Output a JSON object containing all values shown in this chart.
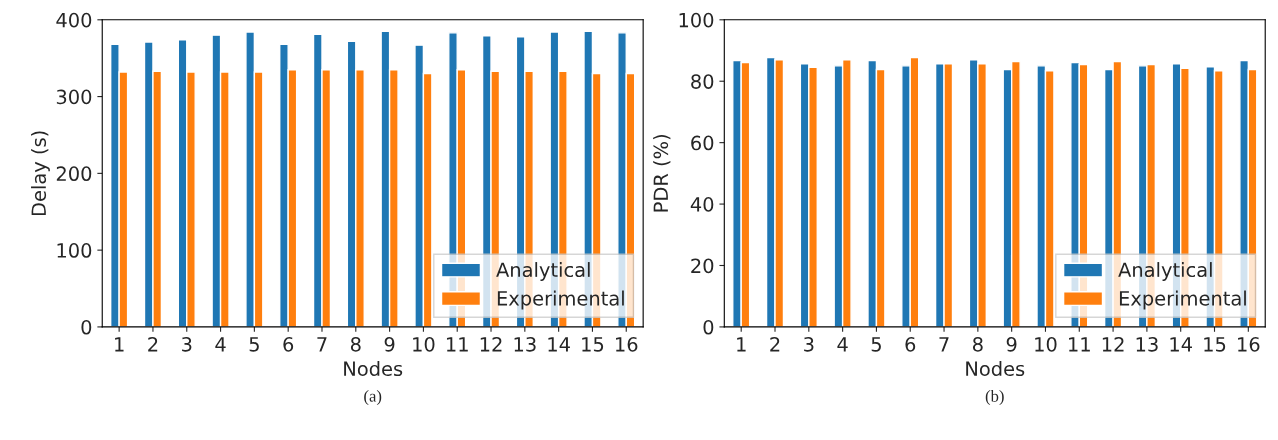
{
  "chart_data": [
    {
      "type": "bar",
      "xlabel": "Nodes",
      "ylabel": "Delay (s)",
      "categories": [
        "1",
        "2",
        "3",
        "4",
        "5",
        "6",
        "7",
        "8",
        "9",
        "10",
        "11",
        "12",
        "13",
        "14",
        "15",
        "16"
      ],
      "series": [
        {
          "name": "Analytical",
          "color": "#1f77b4",
          "values": [
            368,
            371,
            374,
            380,
            384,
            368,
            381,
            372,
            385,
            367,
            383,
            379,
            378,
            384,
            385,
            383
          ]
        },
        {
          "name": "Experimental",
          "color": "#ff7f0e",
          "values": [
            332,
            333,
            332,
            332,
            332,
            335,
            335,
            335,
            335,
            330,
            335,
            333,
            333,
            333,
            330,
            330
          ]
        }
      ],
      "ylim": [
        0,
        400
      ],
      "yticks": [
        0,
        100,
        200,
        300,
        400
      ],
      "legend": "bottom right",
      "grid": false,
      "annotations": [
        "(a)"
      ]
    },
    {
      "type": "bar",
      "xlabel": "Nodes",
      "ylabel": "PDR (%)",
      "categories": [
        "1",
        "2",
        "3",
        "4",
        "5",
        "6",
        "7",
        "8",
        "9",
        "10",
        "11",
        "12",
        "13",
        "14",
        "15",
        "16"
      ],
      "series": [
        {
          "name": "Analytical",
          "color": "#1f77b4",
          "values": [
            86.7,
            87.7,
            85.7,
            85.0,
            86.7,
            85.0,
            85.7,
            87.0,
            83.8,
            85.0,
            86.1,
            83.8,
            85.0,
            85.7,
            84.7,
            86.7
          ]
        },
        {
          "name": "Experimental",
          "color": "#ff7f0e",
          "values": [
            86.1,
            87.0,
            84.5,
            87.0,
            83.8,
            87.7,
            85.7,
            85.7,
            86.4,
            83.4,
            85.4,
            86.4,
            85.4,
            84.2,
            83.4,
            83.8
          ]
        }
      ],
      "ylim": [
        0,
        100
      ],
      "yticks": [
        0,
        20,
        40,
        60,
        80,
        100
      ],
      "legend": "bottom right",
      "grid": false,
      "annotations": [
        "(b)"
      ]
    }
  ]
}
